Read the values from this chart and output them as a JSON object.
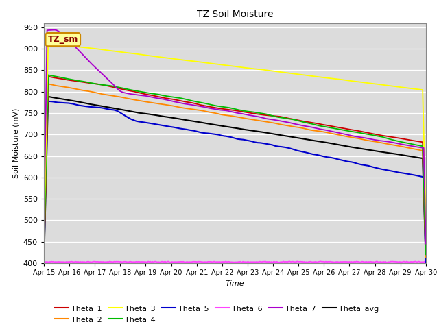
{
  "title": "TZ Soil Moisture",
  "xlabel": "Time",
  "ylabel": "Soil Moisture (mV)",
  "ylim": [
    400,
    960
  ],
  "yticks": [
    400,
    450,
    500,
    550,
    600,
    650,
    700,
    750,
    800,
    850,
    900,
    950
  ],
  "xlabels": [
    "Apr 15",
    "Apr 16",
    "Apr 17",
    "Apr 18",
    "Apr 19",
    "Apr 20",
    "Apr 21",
    "Apr 22",
    "Apr 23",
    "Apr 24",
    "Apr 25",
    "Apr 26",
    "Apr 27",
    "Apr 28",
    "Apr 29",
    "Apr 30"
  ],
  "n_points": 360,
  "background_color": "#dcdcdc",
  "grid_color": "#ffffff",
  "series_colors": {
    "Theta_1": "#cc0000",
    "Theta_2": "#ff8800",
    "Theta_3": "#ffff00",
    "Theta_4": "#00bb00",
    "Theta_5": "#0000cc",
    "Theta_6": "#ff44ff",
    "Theta_7": "#aa00cc",
    "Theta_avg": "#000000"
  },
  "annotation_text": "TZ_sm",
  "annotation_bg": "#ffff99",
  "annotation_border": "#cc8800",
  "annotation_text_color": "#880000",
  "legend_row1": [
    "Theta_1",
    "Theta_2",
    "Theta_3",
    "Theta_4",
    "Theta_5",
    "Theta_6"
  ],
  "legend_row2": [
    "Theta_7",
    "Theta_avg"
  ]
}
